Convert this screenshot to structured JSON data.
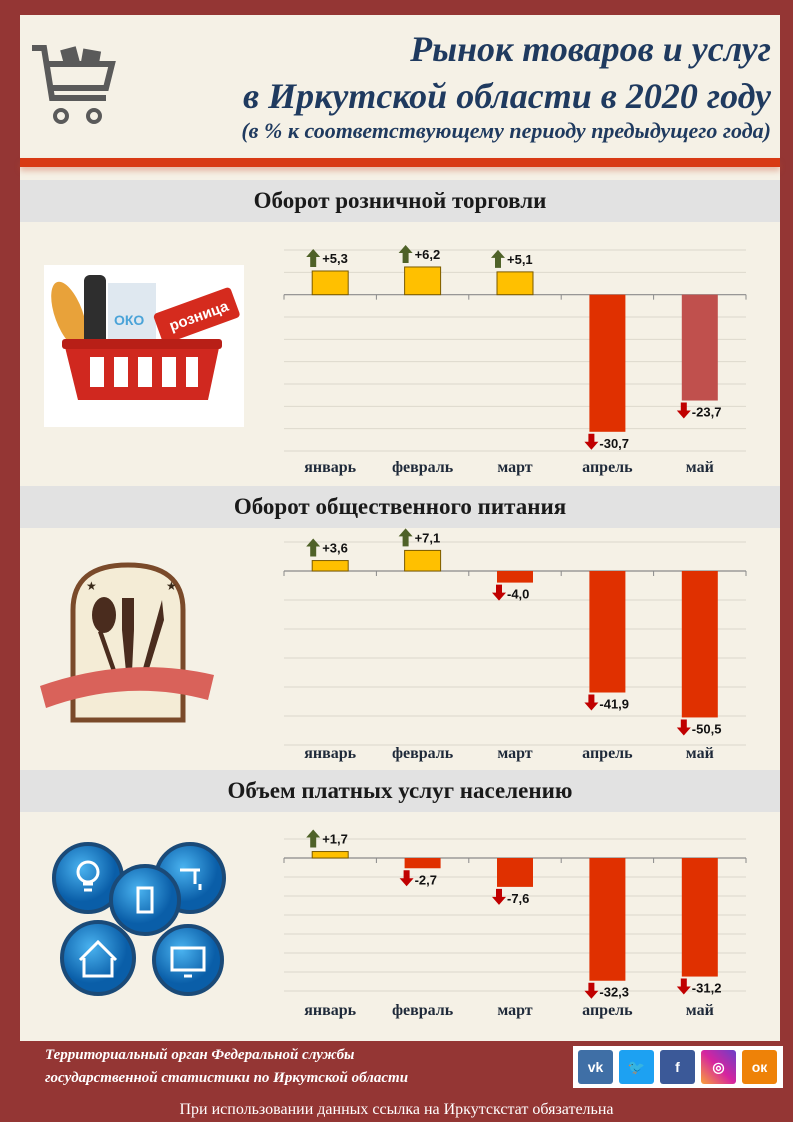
{
  "header": {
    "title_line1": "Рынок товаров и услуг",
    "title_line2": "в Иркутской области в 2020 году",
    "subtitle": "(в % к соответствующему периоду предыдущего года)",
    "icon": "shopping-cart-icon"
  },
  "colors": {
    "frame": "#943634",
    "panel": "#f5f1e6",
    "title": "#1f3a5f",
    "positive": "#ffc000",
    "negative": "#e03000",
    "negative_dark": "#c0504d",
    "up_arrow": "#4f6228",
    "down_arrow": "#c00000"
  },
  "chart_data": [
    {
      "type": "bar",
      "title": "Оборот розничной торговли",
      "categories": [
        "январь",
        "февраль",
        "март",
        "апрель",
        "май"
      ],
      "values": [
        5.3,
        6.2,
        5.1,
        -30.7,
        -23.7
      ],
      "labels": [
        "+5,3",
        "+6,2",
        "+5,1",
        "-30,7",
        "-23,7"
      ],
      "bar_colors": [
        "#ffc000",
        "#ffc000",
        "#ffc000",
        "#e03000",
        "#c0504d"
      ],
      "ylim": [
        -35,
        10
      ],
      "grid": true,
      "grid_step": 5
    },
    {
      "type": "bar",
      "title": "Оборот общественного питания",
      "categories": [
        "январь",
        "февраль",
        "март",
        "апрель",
        "май"
      ],
      "values": [
        3.6,
        7.1,
        -4.0,
        -41.9,
        -50.5
      ],
      "labels": [
        "+3,6",
        "+7,1",
        "-4,0",
        "-41,9",
        "-50,5"
      ],
      "bar_colors": [
        "#ffc000",
        "#ffc000",
        "#e03000",
        "#e03000",
        "#e03000"
      ],
      "ylim": [
        -60,
        10
      ],
      "grid": true,
      "grid_step": 10
    },
    {
      "type": "bar",
      "title": "Объем платных услуг населению",
      "categories": [
        "январь",
        "февраль",
        "март",
        "апрель",
        "май"
      ],
      "values": [
        1.7,
        -2.7,
        -7.6,
        -32.3,
        -31.2
      ],
      "labels": [
        "+1,7",
        "-2,7",
        "-7,6",
        "-32,3",
        "-31,2"
      ],
      "bar_colors": [
        "#ffc000",
        "#e03000",
        "#e03000",
        "#e03000",
        "#e03000"
      ],
      "ylim": [
        -35,
        5
      ],
      "grid": true,
      "grid_step": 5
    }
  ],
  "pictures": {
    "retail_sign": "розница",
    "retail_carton": "ОКО"
  },
  "footer": {
    "org_line1": "Территориальный орган Федеральной службы",
    "org_line2": "государственной статистики по Иркутской области",
    "social": [
      "vk",
      "twitter",
      "f",
      "instagram",
      "ok"
    ],
    "note": "При использовании данных ссылка на Иркутскстат обязательна"
  }
}
